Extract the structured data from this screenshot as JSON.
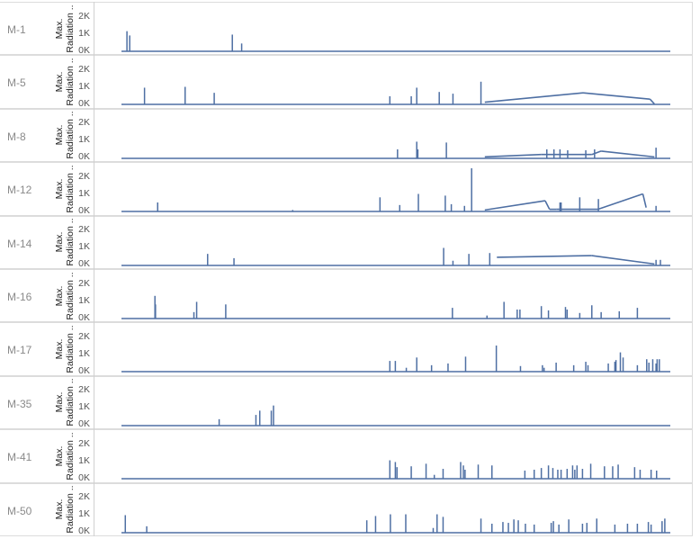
{
  "chart_data": {
    "type": "line",
    "x_range": [
      0,
      100
    ],
    "ylim": [
      0,
      2500
    ],
    "y_tick_labels": [
      "2K",
      "1K",
      "0K"
    ],
    "y_tick_values": [
      2000,
      1000,
      0
    ],
    "ylabel_line1": "Max.",
    "ylabel_line2": "Radiation ..",
    "color": "#4e6fa3",
    "rows": [
      {
        "name": "M-1",
        "spikes": [
          [
            1.0,
            1150
          ],
          [
            1.5,
            900
          ],
          [
            20.2,
            950
          ],
          [
            21.9,
            430
          ]
        ],
        "ramps": []
      },
      {
        "name": "M-5",
        "spikes": [
          [
            4.2,
            950
          ],
          [
            11.6,
            1000
          ],
          [
            16.9,
            650
          ],
          [
            48.9,
            450
          ],
          [
            52.8,
            450
          ],
          [
            53.8,
            950
          ],
          [
            57.9,
            700
          ],
          [
            60.4,
            600
          ],
          [
            65.5,
            1300
          ]
        ],
        "ramps": [
          [
            66.2,
            100,
            84.1,
            650
          ],
          [
            84.1,
            650,
            96.3,
            280
          ],
          [
            96.3,
            280,
            97.1,
            0
          ]
        ]
      },
      {
        "name": "M-8",
        "spikes": [
          [
            50.3,
            500
          ],
          [
            53.8,
            950
          ],
          [
            54.0,
            500
          ],
          [
            59.2,
            900
          ],
          [
            77.5,
            500
          ],
          [
            78.8,
            500
          ],
          [
            79.9,
            500
          ],
          [
            81.3,
            450
          ],
          [
            84.6,
            450
          ],
          [
            86.2,
            500
          ],
          [
            97.4,
            600
          ]
        ],
        "ramps": [
          [
            66.2,
            60,
            76.5,
            200
          ],
          [
            76.5,
            200,
            85.7,
            200
          ],
          [
            85.7,
            200,
            87.4,
            400
          ],
          [
            87.4,
            400,
            97.1,
            60
          ]
        ]
      },
      {
        "name": "M-12",
        "spikes": [
          [
            6.6,
            500
          ],
          [
            31.2,
            60
          ],
          [
            47.1,
            800
          ],
          [
            50.7,
            350
          ],
          [
            54.1,
            1000
          ],
          [
            59.0,
            900
          ],
          [
            60.1,
            400
          ],
          [
            62.5,
            300
          ],
          [
            63.8,
            2500
          ]
        ],
        "ramps": [
          [
            66.2,
            60,
            77.2,
            600
          ],
          [
            77.2,
            600,
            78.0,
            100
          ],
          [
            78.0,
            100,
            79.2,
            100
          ],
          [
            79.2,
            100,
            86.8,
            100
          ],
          [
            86.8,
            100,
            95.0,
            1000
          ],
          [
            95.0,
            1000,
            95.6,
            200
          ]
        ],
        "extra_spikes": [
          [
            79.9,
            500
          ],
          [
            80.1,
            500
          ],
          [
            83.5,
            800
          ],
          [
            86.9,
            700
          ],
          [
            97.4,
            300
          ]
        ]
      },
      {
        "name": "M-14",
        "spikes": [
          [
            15.7,
            650
          ],
          [
            20.5,
            400
          ],
          [
            58.7,
            1000
          ],
          [
            60.4,
            250
          ],
          [
            63.3,
            650
          ],
          [
            67.1,
            700
          ]
        ],
        "ramps": [
          [
            68.4,
            450,
            85.7,
            550
          ],
          [
            85.7,
            550,
            97.1,
            60
          ]
        ],
        "extra_spikes": [
          [
            97.4,
            300
          ],
          [
            98.2,
            300
          ]
        ]
      },
      {
        "name": "M-16",
        "spikes": [
          [
            6.1,
            1300
          ],
          [
            6.2,
            800
          ],
          [
            13.2,
            350
          ],
          [
            13.7,
            950
          ],
          [
            19.0,
            800
          ],
          [
            60.3,
            600
          ],
          [
            66.6,
            150
          ],
          [
            69.7,
            950
          ],
          [
            72.1,
            500
          ],
          [
            72.6,
            500
          ],
          [
            76.5,
            700
          ],
          [
            77.8,
            450
          ],
          [
            80.9,
            650
          ],
          [
            81.2,
            500
          ],
          [
            83.5,
            300
          ],
          [
            85.7,
            750
          ],
          [
            87.4,
            350
          ],
          [
            90.7,
            400
          ],
          [
            94.0,
            600
          ]
        ],
        "ramps": []
      },
      {
        "name": "M-17",
        "spikes": [
          [
            48.9,
            600
          ],
          [
            49.9,
            600
          ],
          [
            51.9,
            200
          ],
          [
            53.8,
            800
          ],
          [
            56.5,
            350
          ],
          [
            59.5,
            450
          ],
          [
            62.7,
            850
          ],
          [
            68.3,
            1500
          ],
          [
            72.7,
            300
          ],
          [
            76.7,
            350
          ],
          [
            77.0,
            200
          ],
          [
            79.2,
            500
          ],
          [
            82.4,
            350
          ],
          [
            84.6,
            550
          ],
          [
            85.0,
            350
          ],
          [
            88.7,
            450
          ],
          [
            89.9,
            550
          ],
          [
            90.1,
            650
          ],
          [
            90.9,
            1100
          ],
          [
            91.4,
            800
          ],
          [
            94.0,
            350
          ],
          [
            95.7,
            700
          ],
          [
            96.1,
            500
          ],
          [
            96.8,
            700
          ],
          [
            97.4,
            450
          ],
          [
            97.6,
            700
          ],
          [
            98.0,
            700
          ]
        ],
        "ramps": []
      },
      {
        "name": "M-35",
        "spikes": [
          [
            17.8,
            350
          ],
          [
            24.5,
            600
          ],
          [
            25.2,
            850
          ],
          [
            27.3,
            850
          ],
          [
            27.7,
            1150
          ]
        ],
        "ramps": []
      },
      {
        "name": "M-41",
        "spikes": [
          [
            48.9,
            1050
          ],
          [
            49.9,
            950
          ],
          [
            50.2,
            650
          ],
          [
            52.8,
            700
          ],
          [
            55.5,
            850
          ],
          [
            57.0,
            200
          ],
          [
            58.6,
            550
          ],
          [
            61.8,
            950
          ],
          [
            62.3,
            750
          ],
          [
            62.6,
            500
          ],
          [
            65.0,
            800
          ],
          [
            67.5,
            750
          ],
          [
            73.5,
            450
          ],
          [
            75.2,
            500
          ],
          [
            76.5,
            600
          ],
          [
            77.8,
            750
          ],
          [
            78.6,
            600
          ],
          [
            79.5,
            500
          ],
          [
            80.1,
            500
          ],
          [
            81.2,
            550
          ],
          [
            82.2,
            750
          ],
          [
            82.6,
            500
          ],
          [
            83.0,
            750
          ],
          [
            84.0,
            550
          ],
          [
            85.5,
            850
          ],
          [
            88.0,
            700
          ],
          [
            89.5,
            700
          ],
          [
            90.5,
            800
          ],
          [
            93.5,
            650
          ],
          [
            94.5,
            500
          ],
          [
            96.5,
            500
          ],
          [
            97.5,
            450
          ]
        ],
        "ramps": []
      },
      {
        "name": "M-50",
        "spikes": [
          [
            0.7,
            1000
          ],
          [
            4.6,
            350
          ],
          [
            44.7,
            700
          ],
          [
            46.3,
            950
          ],
          [
            49.0,
            1050
          ],
          [
            51.8,
            1050
          ],
          [
            56.8,
            250
          ],
          [
            57.5,
            1050
          ],
          [
            58.6,
            900
          ],
          [
            65.5,
            800
          ],
          [
            67.5,
            500
          ],
          [
            69.5,
            600
          ],
          [
            70.5,
            550
          ],
          [
            71.5,
            750
          ],
          [
            72.3,
            700
          ],
          [
            73.6,
            500
          ],
          [
            75.2,
            450
          ],
          [
            78.3,
            550
          ],
          [
            78.7,
            650
          ],
          [
            79.7,
            450
          ],
          [
            81.5,
            750
          ],
          [
            84.0,
            500
          ],
          [
            84.8,
            550
          ],
          [
            86.6,
            800
          ],
          [
            89.9,
            450
          ],
          [
            92.2,
            500
          ],
          [
            94.0,
            500
          ],
          [
            96.0,
            600
          ],
          [
            96.5,
            450
          ],
          [
            98.5,
            650
          ],
          [
            99.0,
            800
          ]
        ],
        "ramps": []
      }
    ]
  }
}
